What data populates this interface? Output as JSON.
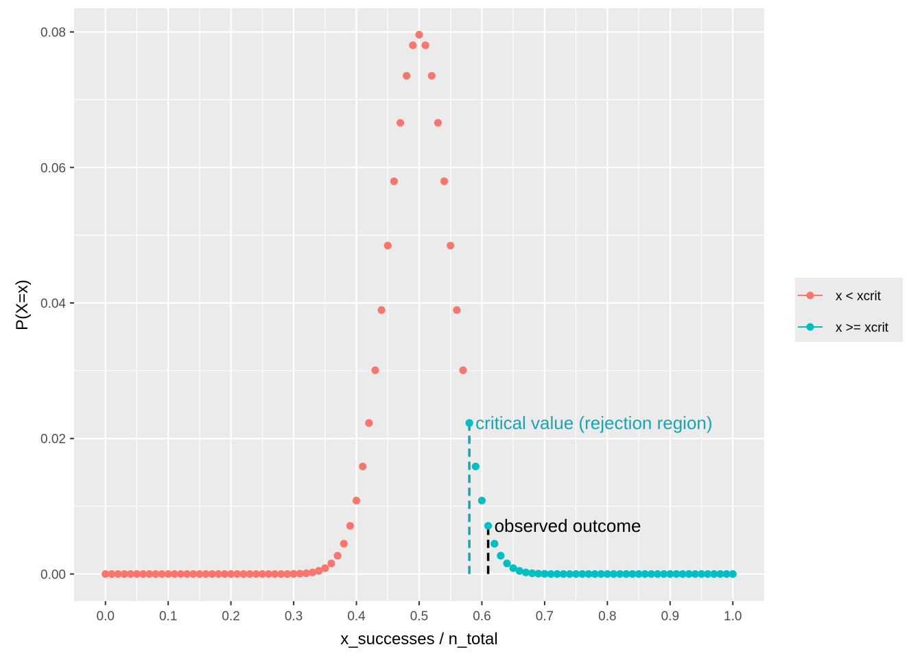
{
  "chart_data": {
    "type": "scatter",
    "title": "",
    "xlabel": "x_successes / n_total",
    "ylabel": "P(X=x)",
    "xlim": [
      -0.05,
      1.05
    ],
    "ylim": [
      -0.004,
      0.0835
    ],
    "x_ticks": [
      0.0,
      0.1,
      0.2,
      0.3,
      0.4,
      0.5,
      0.6,
      0.7,
      0.8,
      0.9,
      1.0
    ],
    "x_tick_labels": [
      "0.0",
      "0.1",
      "0.2",
      "0.3",
      "0.4",
      "0.5",
      "0.6",
      "0.7",
      "0.8",
      "0.9",
      "1.0"
    ],
    "y_ticks": [
      0.0,
      0.02,
      0.04,
      0.06,
      0.08
    ],
    "y_tick_labels": [
      "0.00",
      "0.02",
      "0.04",
      "0.06",
      "0.08"
    ],
    "grid": true,
    "legend_position": "right",
    "series": [
      {
        "name": "x < xcrit",
        "color": "#F8766D",
        "x": [
          0.0,
          0.01,
          0.02,
          0.03,
          0.04,
          0.05,
          0.06,
          0.07,
          0.08,
          0.09,
          0.1,
          0.11,
          0.12,
          0.13,
          0.14,
          0.15,
          0.16,
          0.17,
          0.18,
          0.19,
          0.2,
          0.21,
          0.22,
          0.23,
          0.24,
          0.25,
          0.26,
          0.27,
          0.28,
          0.29,
          0.3,
          0.31,
          0.32,
          0.33,
          0.34,
          0.35,
          0.36,
          0.37,
          0.38,
          0.39,
          0.4,
          0.41,
          0.42,
          0.43,
          0.44,
          0.45,
          0.46,
          0.47,
          0.48,
          0.49,
          0.5,
          0.51,
          0.52,
          0.53,
          0.54,
          0.55,
          0.56,
          0.57
        ],
        "y": [
          0,
          0,
          0,
          0,
          0,
          0,
          0,
          0,
          0,
          0,
          0,
          0,
          0,
          0,
          0,
          0,
          0,
          0,
          0,
          0,
          0,
          0,
          0,
          0,
          0,
          0,
          0,
          0,
          0,
          0,
          2e-05,
          5e-05,
          0.00011,
          0.00023,
          0.00046,
          0.00086,
          0.00156,
          0.0027,
          0.00447,
          0.00711,
          0.01084,
          0.01587,
          0.02229,
          0.03007,
          0.03895,
          0.04847,
          0.05796,
          0.06659,
          0.07353,
          0.07803,
          0.07959,
          0.07803,
          0.07353,
          0.06659,
          0.05796,
          0.04847,
          0.03895,
          0.03007
        ]
      },
      {
        "name": "x >= xcrit",
        "color": "#00BFC4",
        "x": [
          0.58,
          0.59,
          0.6,
          0.61,
          0.62,
          0.63,
          0.64,
          0.65,
          0.66,
          0.67,
          0.68,
          0.69,
          0.7,
          0.71,
          0.72,
          0.73,
          0.74,
          0.75,
          0.76,
          0.77,
          0.78,
          0.79,
          0.8,
          0.81,
          0.82,
          0.83,
          0.84,
          0.85,
          0.86,
          0.87,
          0.88,
          0.89,
          0.9,
          0.91,
          0.92,
          0.93,
          0.94,
          0.95,
          0.96,
          0.97,
          0.98,
          0.99,
          1.0
        ],
        "y": [
          0.02229,
          0.01587,
          0.01084,
          0.00711,
          0.00447,
          0.0027,
          0.00156,
          0.00086,
          0.00046,
          0.00023,
          0.00011,
          5e-05,
          2e-05,
          0,
          0,
          0,
          0,
          0,
          0,
          0,
          0,
          0,
          0,
          0,
          0,
          0,
          0,
          0,
          0,
          0,
          0,
          0,
          0,
          0,
          0,
          0,
          0,
          0,
          0,
          0,
          0,
          0,
          0
        ]
      }
    ],
    "annotations": [
      {
        "text": "critical value (rejection region)",
        "x": 0.58,
        "y": 0.02229,
        "color": "#1AA3B0",
        "line_style": "dashed"
      },
      {
        "text": "observed outcome",
        "x": 0.61,
        "y": 0.00711,
        "color": "#000000",
        "line_style": "dashed"
      }
    ],
    "colors": {
      "panel_background": "#EBEBEB",
      "grid_line": "#FFFFFF"
    }
  }
}
